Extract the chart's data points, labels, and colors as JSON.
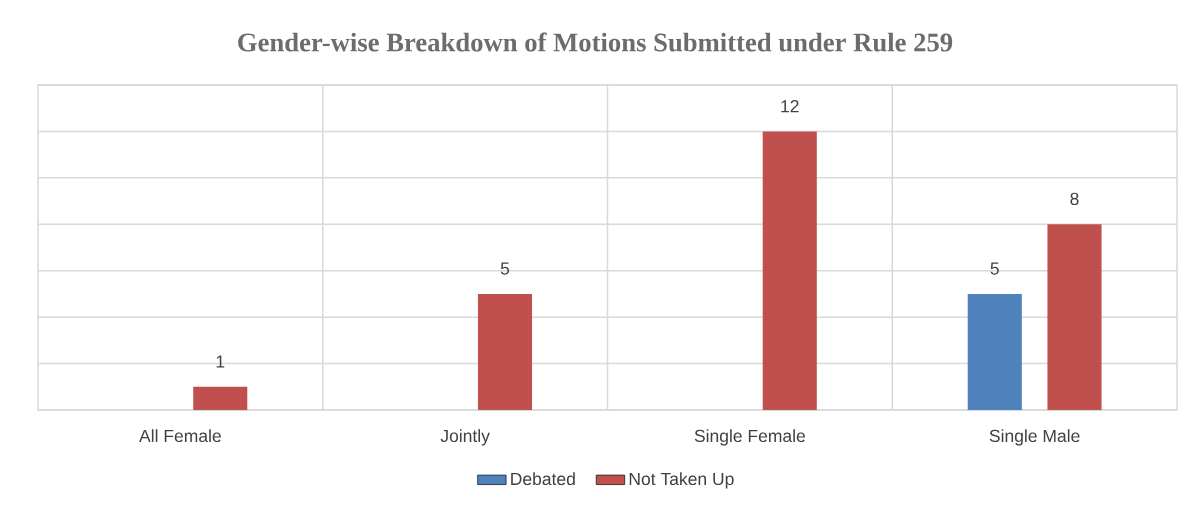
{
  "chart_data": {
    "type": "bar",
    "title": "Gender-wise Breakdown of Motions Submitted under Rule 259",
    "categories": [
      "All Female",
      "Jointly",
      "Single Female",
      "Single Male"
    ],
    "series": [
      {
        "name": "Debated",
        "color": "#4f81bd",
        "values": [
          null,
          null,
          null,
          5
        ]
      },
      {
        "name": "Not Taken Up",
        "color": "#c0504d",
        "values": [
          1,
          5,
          12,
          8
        ]
      }
    ],
    "ylim": [
      0,
      14
    ],
    "yticks": [
      {
        "value": 0,
        "label": null
      },
      {
        "value": 2,
        "label": null
      },
      {
        "value": 4,
        "label": null
      },
      {
        "value": 6,
        "label": null
      },
      {
        "value": 8,
        "label": null
      },
      {
        "value": 10,
        "label": null
      },
      {
        "value": 12,
        "label": null
      },
      {
        "value": 14,
        "label": null
      }
    ],
    "tick_labels": "x",
    "data_labels": true,
    "grid": true,
    "legend": "bottom"
  }
}
